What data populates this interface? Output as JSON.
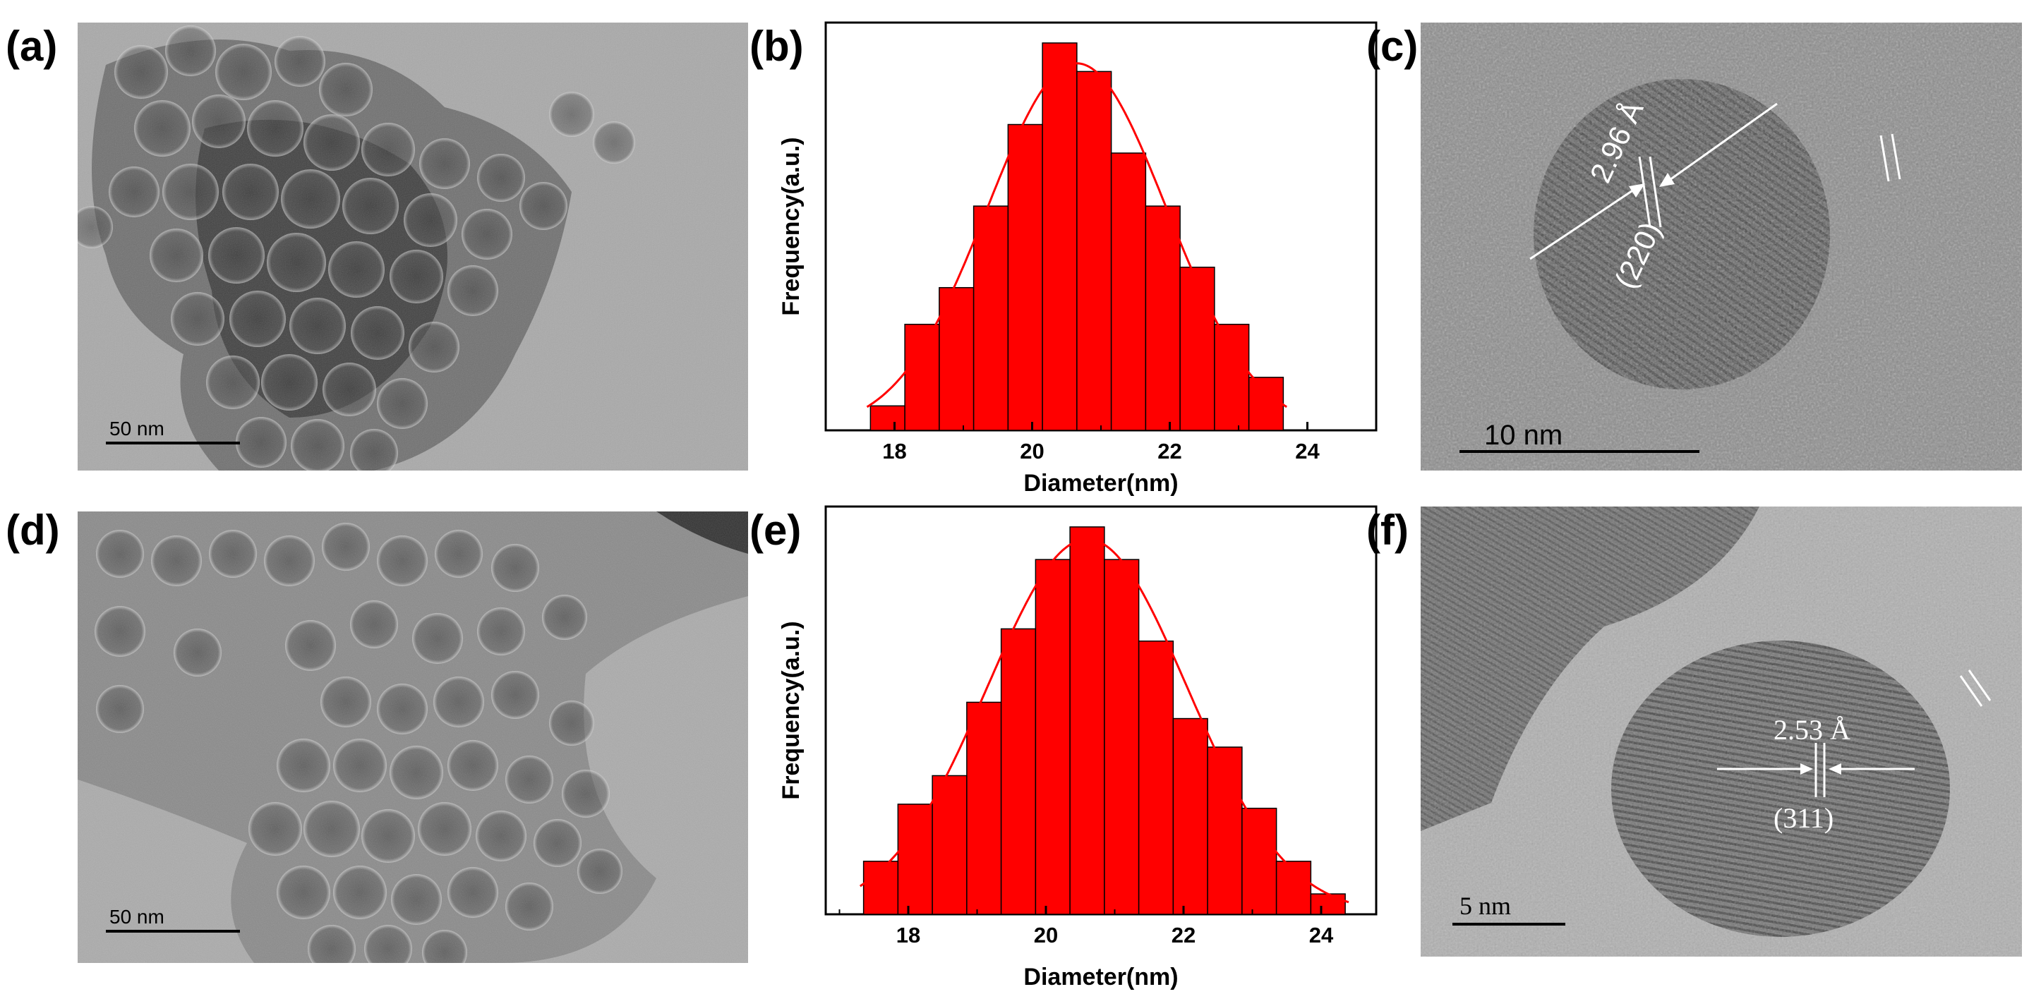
{
  "figure": {
    "panels": [
      {
        "id": "a",
        "label": "(a)",
        "scale_bar": "50 nm"
      },
      {
        "id": "b",
        "label": "(b)"
      },
      {
        "id": "c",
        "label": "(c)",
        "scale_bar": "10 nm",
        "d_spacing": "2.96 Å",
        "plane": "(220)"
      },
      {
        "id": "d",
        "label": "(d)",
        "scale_bar": "50 nm"
      },
      {
        "id": "e",
        "label": "(e)"
      },
      {
        "id": "f",
        "label": "(f)",
        "scale_bar": "5 nm",
        "d_spacing": "2.53 Å",
        "plane": "(311)"
      }
    ]
  },
  "colors": {
    "bar": "#ff0000",
    "bar_stroke": "#000000",
    "fit_curve": "#ff0000",
    "micro_bg": "#a8a8a8"
  },
  "chart_data": [
    {
      "panel": "b",
      "type": "bar",
      "title": "",
      "xlabel": "Diameter(nm)",
      "ylabel": "Frequency(a.u.)",
      "xlim": [
        17,
        25
      ],
      "ylim": [
        0,
        100
      ],
      "xticks": [
        18,
        20,
        22,
        24
      ],
      "x": [
        17.9,
        18.4,
        18.9,
        19.4,
        19.9,
        20.4,
        20.9,
        21.4,
        21.9,
        22.4,
        22.9,
        23.4
      ],
      "values": [
        6,
        26,
        35,
        55,
        75,
        95,
        88,
        68,
        55,
        40,
        26,
        13
      ],
      "fit": {
        "type": "gaussian",
        "mean": 20.65,
        "sigma": 1.3,
        "peak": 90
      }
    },
    {
      "panel": "e",
      "type": "bar",
      "title": "",
      "xlabel": "Diameter(nm)",
      "ylabel": "Frequency(a.u.)",
      "xlim": [
        16.8,
        24.8
      ],
      "ylim": [
        0,
        100
      ],
      "xticks": [
        18,
        20,
        22,
        24
      ],
      "x": [
        17.6,
        18.1,
        18.6,
        19.1,
        19.6,
        20.1,
        20.6,
        21.1,
        21.6,
        22.1,
        22.6,
        23.1,
        23.6,
        24.1
      ],
      "values": [
        13,
        27,
        34,
        52,
        70,
        87,
        95,
        87,
        67,
        48,
        41,
        26,
        13,
        5
      ],
      "fit": {
        "type": "gaussian",
        "mean": 20.6,
        "sigma": 1.45,
        "peak": 92
      }
    }
  ]
}
